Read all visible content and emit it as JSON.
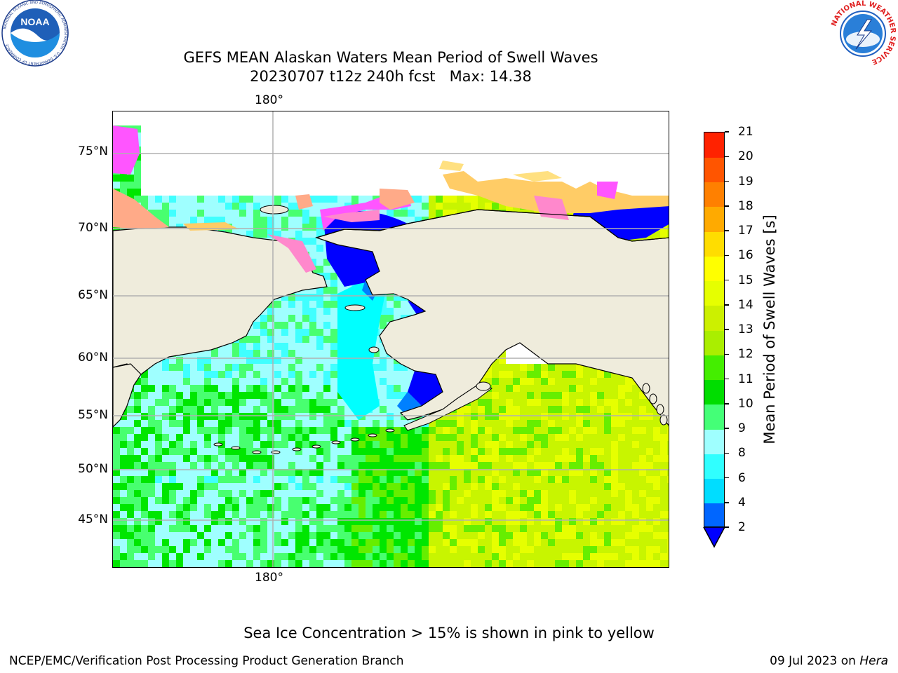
{
  "title": {
    "line1": "GEFS MEAN Alaskan Waters Mean Period of Swell Waves",
    "line2": "20230707 t12z 240h fcst   Max: 14.38"
  },
  "logos": {
    "noara_badge": "NOAA",
    "noaa_ring": "NATIONAL OCEANIC AND ATMOSPHERIC ADMINISTRATION · U.S. DEPARTMENT OF COMMERCE",
    "nws_ring": "NATIONAL WEATHER SERVICE"
  },
  "map": {
    "lon_label_top": "180°",
    "lon_label_bottom": "180°",
    "lat_labels": [
      "75°N",
      "70°N",
      "65°N",
      "60°N",
      "55°N",
      "50°N",
      "45°N"
    ],
    "land_color": "#efecdc",
    "ocean_palette": [
      "#0000ff",
      "#0080ff",
      "#00ffff",
      "#40ffff",
      "#9fffff",
      "#48ff70",
      "#00e600",
      "#66ee00",
      "#c8f500",
      "#e6ff00"
    ],
    "ice_palette": [
      "#ff55ff",
      "#ff88cc",
      "#ffaa88",
      "#ffcc66",
      "#ffe080"
    ]
  },
  "colorbar": {
    "title": "Mean Period of Swell Waves [s]",
    "ticks": [
      2,
      4,
      6,
      8,
      9,
      10,
      11,
      12,
      13,
      14,
      15,
      16,
      17,
      18,
      19,
      20,
      21
    ],
    "colors": [
      "#0066ff",
      "#00ddff",
      "#30ffff",
      "#9fffff",
      "#44ff77",
      "#00dd00",
      "#44ee00",
      "#aaee00",
      "#ccf000",
      "#e6ff00",
      "#ffff00",
      "#ffdd00",
      "#ffaa00",
      "#ff8000",
      "#ff5500",
      "#ff2200"
    ],
    "extend_color": "#0000ff"
  },
  "notes": {
    "ice": "Sea Ice Concentration > 15% is shown in pink to yellow",
    "footer_left": "NCEP/EMC/Verification Post Processing Product Generation Branch",
    "footer_date": "09 Jul 2023 on ",
    "footer_machine": "Hera"
  }
}
